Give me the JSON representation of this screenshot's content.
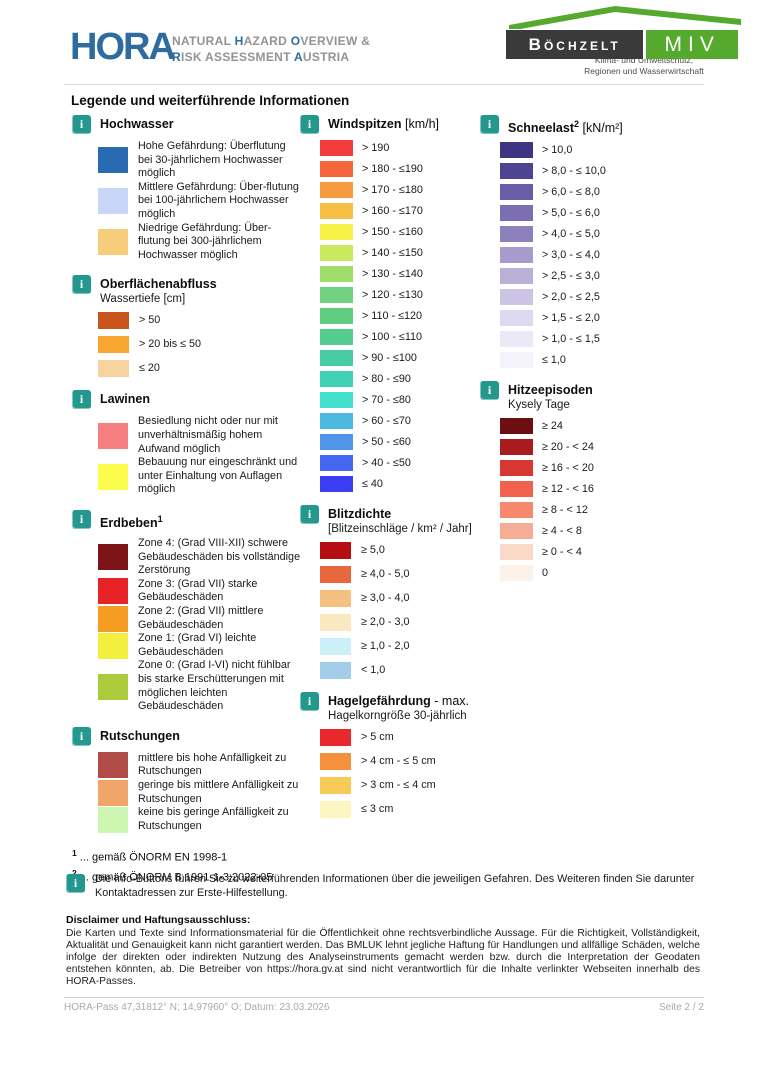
{
  "colors": {
    "info_icon": "#24988E",
    "hora_blue": "#2E6B9F",
    "logo_green": "#55A92C",
    "logo_dark": "#3A3A3A"
  },
  "header": {
    "brand": "HORA",
    "brand_sub_lines": [
      [
        {
          "text": "NATURAL ",
          "accent": false
        },
        {
          "text": "H",
          "accent": true
        },
        {
          "text": "AZARD ",
          "accent": false
        },
        {
          "text": "O",
          "accent": true
        },
        {
          "text": "VERVIEW &",
          "accent": false
        }
      ],
      [
        {
          "text": "R",
          "accent": true
        },
        {
          "text": "ISK ASSESSMENT ",
          "accent": false
        },
        {
          "text": "A",
          "accent": true
        },
        {
          "text": "USTRIA",
          "accent": false
        }
      ]
    ],
    "org": {
      "name_left": "Böchzelt",
      "name_right": "MIV",
      "subtitle1": "Klima- und Umweltschutz,",
      "subtitle2": "Regionen und Wasserwirtschaft"
    }
  },
  "page_title": "Legende und weiterführende Informationen",
  "columns": [
    {
      "sections": [
        {
          "id": "hochwasser",
          "title": "Hochwasser",
          "sup": "",
          "unit": "",
          "subtitle": "",
          "row_style": "text-rows",
          "items": [
            {
              "color": "#2A6AB0",
              "label": "Hohe Gefährdung: Überflutung bei 30-jährlichem Hochwasser möglich"
            },
            {
              "color": "#C8D7F8",
              "label": "Mittlere Gefährdung: Über-flutung bei 100-jährlichem Hochwasser möglich"
            },
            {
              "color": "#F7CD7C",
              "label": "Niedrige Gefährdung: Über-flutung bei 300-jährlichem Hochwasser möglich"
            }
          ]
        },
        {
          "id": "oberflaechenabfluss",
          "title": "Oberflächenabfluss",
          "sup": "",
          "unit": "",
          "subtitle": "Wassertiefe [cm]",
          "row_style": "gap-rows",
          "items": [
            {
              "color": "#C9541C",
              "label": "> 50"
            },
            {
              "color": "#F7A72F",
              "label": "> 20 bis ≤ 50"
            },
            {
              "color": "#F7D49E",
              "label": "≤ 20"
            }
          ]
        },
        {
          "id": "lawinen",
          "title": "Lawinen",
          "sup": "",
          "unit": "",
          "subtitle": "",
          "row_style": "text-rows",
          "items": [
            {
              "color": "#F57F7F",
              "label": "Besiedlung nicht oder nur mit unverhältnismäßig hohem Aufwand möglich"
            },
            {
              "color": "#FCFC4C",
              "label": "Bebauung nur eingeschränkt und unter Einhaltung von Auflagen möglich"
            }
          ]
        },
        {
          "id": "erdbeben",
          "title": "Erdbeben",
          "sup": "1",
          "unit": "",
          "subtitle": "",
          "row_style": "text-rows",
          "items": [
            {
              "color": "#7C1316",
              "label": "Zone 4: (Grad VIII-XII) schwere Gebäudeschäden bis vollständige Zerstörung"
            },
            {
              "color": "#E82328",
              "label": "Zone 3: (Grad VII) starke Gebäudeschäden"
            },
            {
              "color": "#F59D22",
              "label": "Zone 2: (Grad VII) mittlere Gebäudeschäden"
            },
            {
              "color": "#F4EE3E",
              "label": "Zone 1: (Grad VI) leichte Gebäudeschäden"
            },
            {
              "color": "#ABCB3C",
              "label": "Zone 0: (Grad I-VI) nicht fühlbar bis starke Erschütterungen mit möglichen leichten Gebäudeschäden"
            }
          ]
        },
        {
          "id": "rutschungen",
          "title": "Rutschungen",
          "sup": "",
          "unit": "",
          "subtitle": "",
          "row_style": "text-rows",
          "items": [
            {
              "color": "#B14B47",
              "label": "mittlere bis hohe Anfälligkeit zu Rutschungen"
            },
            {
              "color": "#F0A668",
              "label": "geringe bis mittlere Anfälligkeit zu Rutschungen"
            },
            {
              "color": "#CEF5B2",
              "label": "keine bis geringe Anfälligkeit zu Rutschungen"
            }
          ]
        }
      ]
    },
    {
      "sections": [
        {
          "id": "windspitzen",
          "title": "Windspitzen",
          "sup": "",
          "unit": "[km/h]",
          "subtitle": "",
          "row_style": "scale-rows",
          "items": [
            {
              "color": "#F23C3C",
              "label": "> 190"
            },
            {
              "color": "#F4663C",
              "label": "> 180 - ≤190"
            },
            {
              "color": "#F59B40",
              "label": "> 170 - ≤180"
            },
            {
              "color": "#F6C044",
              "label": "> 160 - ≤170"
            },
            {
              "color": "#F7F148",
              "label": "> 150 - ≤160"
            },
            {
              "color": "#C9EA5F",
              "label": "> 140 - ≤150"
            },
            {
              "color": "#9EDD69",
              "label": "> 130 - ≤140"
            },
            {
              "color": "#72D17E",
              "label": "> 120 - ≤130"
            },
            {
              "color": "#60CD80",
              "label": "> 110 - ≤120"
            },
            {
              "color": "#53CC90",
              "label": "> 100 - ≤110"
            },
            {
              "color": "#47CCA2",
              "label": "> 90 - ≤100"
            },
            {
              "color": "#41D2B5",
              "label": "> 80 - ≤90"
            },
            {
              "color": "#42E0CC",
              "label": "> 70 - ≤80"
            },
            {
              "color": "#4CBAE0",
              "label": "> 60 - ≤70"
            },
            {
              "color": "#5095E8",
              "label": "> 50 - ≤60"
            },
            {
              "color": "#4668F0",
              "label": "> 40 - ≤50"
            },
            {
              "color": "#3C3DF2",
              "label": "≤ 40"
            }
          ]
        },
        {
          "id": "blitzdichte",
          "title": "Blitzdichte",
          "sup": "",
          "unit": "",
          "subtitle": "[Blitzeinschläge / km² / Jahr]",
          "row_style": "gap-rows",
          "items": [
            {
              "color": "#B40E12",
              "label": "≥ 5,0"
            },
            {
              "color": "#E8683E",
              "label": "≥ 4,0 - 5,0"
            },
            {
              "color": "#F5BF80",
              "label": "≥ 3,0 - 4,0"
            },
            {
              "color": "#FAE8C1",
              "label": "≥ 2,0 - 3,0"
            },
            {
              "color": "#CBF0FA",
              "label": "≥ 1,0 - 2,0"
            },
            {
              "color": "#A3CDE8",
              "label": "< 1,0"
            }
          ]
        },
        {
          "id": "hagelgefaehrdung",
          "title": "Hagelgefährdung",
          "sup": "",
          "unit": "- max.",
          "subtitle": "Hagelkorngröße 30-jährlich",
          "row_style": "gap-rows",
          "items": [
            {
              "color": "#E8282C",
              "label": "> 5 cm"
            },
            {
              "color": "#F5913D",
              "label": "> 4 cm - ≤ 5 cm"
            },
            {
              "color": "#F8CA57",
              "label": "> 3 cm - ≤ 4 cm"
            },
            {
              "color": "#FCF6C1",
              "label": "≤ 3 cm"
            }
          ]
        }
      ]
    },
    {
      "sections": [
        {
          "id": "schneelast",
          "title": "Schneelast",
          "sup": "2",
          "unit": "[kN/m²]",
          "subtitle": "",
          "row_style": "scale-rows",
          "items": [
            {
              "color": "#3D3581",
              "label": "> 10,0"
            },
            {
              "color": "#4D4591",
              "label": "> 8,0 - ≤ 10,0"
            },
            {
              "color": "#6A5DA7",
              "label": "> 6,0 - ≤ 8,0"
            },
            {
              "color": "#7B6FB1",
              "label": "> 5,0 - ≤ 6,0"
            },
            {
              "color": "#8D81BC",
              "label": "> 4,0 - ≤ 5,0"
            },
            {
              "color": "#A79BCB",
              "label": "> 3,0 - ≤ 4,0"
            },
            {
              "color": "#B9AFD7",
              "label": "> 2,5 - ≤ 3,0"
            },
            {
              "color": "#CCC4E4",
              "label": "> 2,0 - ≤ 2,5"
            },
            {
              "color": "#DED9F0",
              "label": "> 1,5 - ≤ 2,0"
            },
            {
              "color": "#ECE9F7",
              "label": "> 1,0 - ≤ 1,5"
            },
            {
              "color": "#F5F4FC",
              "label": "≤ 1,0"
            }
          ]
        },
        {
          "id": "hitzeepisoden",
          "title": "Hitzeepisoden",
          "sup": "",
          "unit": "",
          "subtitle": "Kysely Tage",
          "row_style": "scale-rows",
          "items": [
            {
              "color": "#6C0E12",
              "label": "≥ 24"
            },
            {
              "color": "#A81B1F",
              "label": "≥ 20 - < 24"
            },
            {
              "color": "#D83630",
              "label": "≥ 16 - < 20"
            },
            {
              "color": "#F0624D",
              "label": "≥ 12 - < 16"
            },
            {
              "color": "#F5886D",
              "label": "≥ 8 - < 12"
            },
            {
              "color": "#F6AD95",
              "label": "≥ 4 - < 8"
            },
            {
              "color": "#FAD9C9",
              "label": "≥ 0 - < 4"
            },
            {
              "color": "#FDF1E9",
              "label": "0"
            }
          ]
        }
      ]
    }
  ],
  "footnotes": [
    {
      "sup": "1",
      "text": " ... gemäß ÖNORM EN 1998-1"
    },
    {
      "sup": "2",
      "text": " ... gemäß ÖNORM B 1991-1-3:2022-05"
    }
  ],
  "info_note": "Die Info-Buttons führen Sie zu weiterführenden Informationen über die jeweiligen Gefahren. Des Weiteren finden Sie darunter Kontaktadressen zur Erste-Hilfestellung.",
  "disclaimer": {
    "title": "Disclaimer und Haftungsausschluss:",
    "body": "Die Karten und Texte sind Informationsmaterial für die Öffentlichkeit ohne rechtsverbindliche Aussage. Für die Richtigkeit, Vollständigkeit, Aktualität und Genauigkeit kann nicht garantiert werden. Das BMLUK lehnt jegliche Haftung für Handlungen und allfällige Schäden, welche infolge der direkten oder indirekten Nutzung des Analyseinstruments gemacht werden bzw. durch die Interpretation der Geodaten entstehen könnten, ab. Die Betreiber von https://hora.gv.at sind nicht verantwortlich für die Inhalte verlinkter Webseiten innerhalb des HORA-Passes."
  },
  "footer": {
    "left": "HORA-Pass 47,31812° N; 14,97960° O; Datum: 23.03.2026",
    "right": "Seite 2 / 2"
  }
}
